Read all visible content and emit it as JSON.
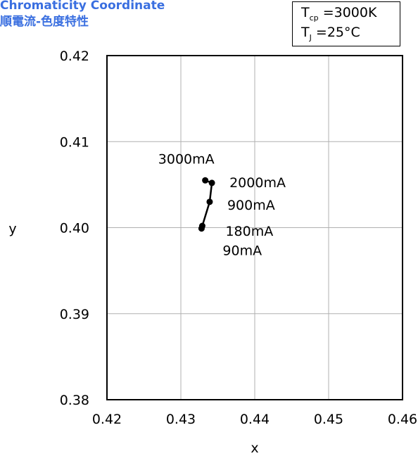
{
  "header": {
    "title": "Chromaticity Coordinate",
    "subtitle": "順電流-色度特性"
  },
  "conditions": {
    "line1_symbol": "T",
    "line1_sub": "cp",
    "line1_value": "=3000K",
    "line2_symbol": "T",
    "line2_sub": "J",
    "line2_value": "=25°C"
  },
  "colors": {
    "title": "#3a6fe0",
    "series": "#000000",
    "grid": "#b0b0b0"
  },
  "chart_data": {
    "type": "line",
    "title": "Chromaticity Coordinate",
    "xlabel": "x",
    "ylabel": "y",
    "xlim": [
      0.42,
      0.46
    ],
    "ylim": [
      0.38,
      0.42
    ],
    "xticks": [
      "0.42",
      "0.43",
      "0.44",
      "0.45",
      "0.46"
    ],
    "yticks": [
      "0.38",
      "0.39",
      "0.40",
      "0.41",
      "0.42"
    ],
    "grid": true,
    "markers": true,
    "series": [
      {
        "points": [
          {
            "x": 0.4328,
            "y": 0.3999,
            "label": "90mA"
          },
          {
            "x": 0.4329,
            "y": 0.4002,
            "label": "180mA"
          },
          {
            "x": 0.4339,
            "y": 0.403,
            "label": "900mA"
          },
          {
            "x": 0.4342,
            "y": 0.4052,
            "label": "2000mA"
          },
          {
            "x": 0.4333,
            "y": 0.4055,
            "label": "3000mA"
          }
        ]
      }
    ]
  }
}
